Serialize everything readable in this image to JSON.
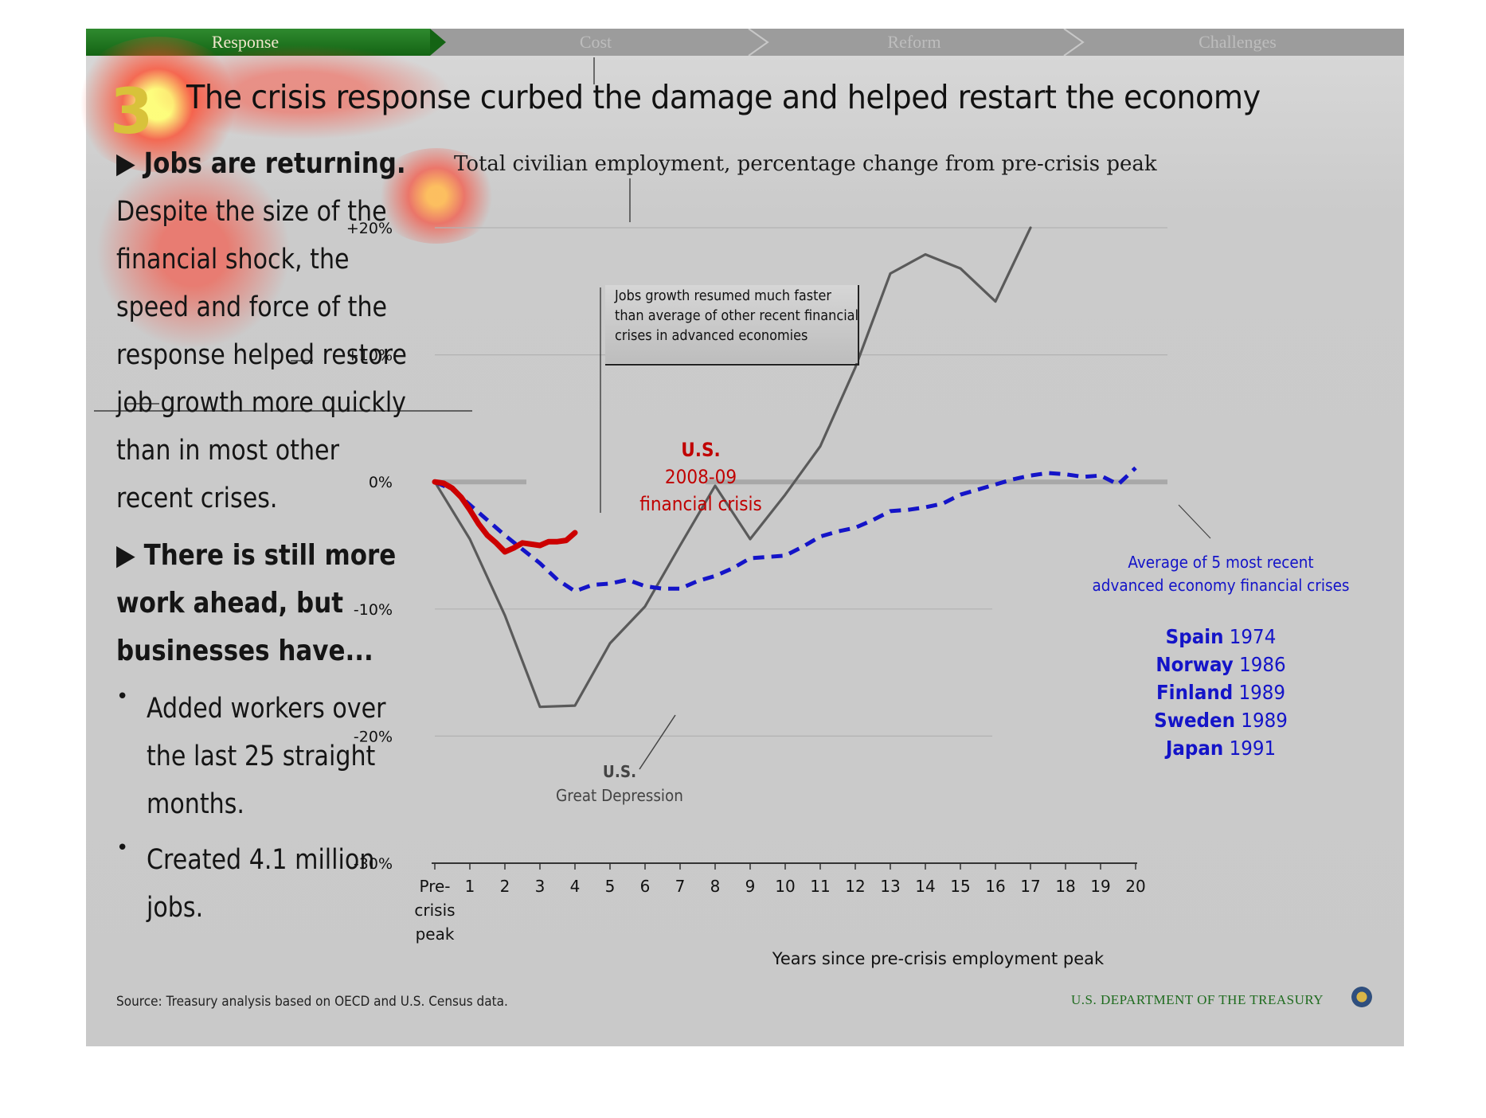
{
  "nav": {
    "tabs": [
      {
        "label": "Response",
        "active": true
      },
      {
        "label": "Cost",
        "active": false
      },
      {
        "label": "Reform",
        "active": false
      },
      {
        "label": "Challenges",
        "active": false
      }
    ]
  },
  "slide": {
    "number": "3",
    "title": "The crisis response curbed the damage and helped restart the economy"
  },
  "left": {
    "heading1": "▶ Jobs are returning.",
    "body_lines": [
      "Despite the size of the",
      "financial shock, the",
      "speed and force of the",
      "response helped restore",
      "job growth more quickly",
      "than in most other",
      "recent crises."
    ],
    "heading2_lines": [
      "▶ There is still more",
      "work ahead, but",
      "businesses have..."
    ],
    "bullets": [
      {
        "lines": [
          "Added workers over",
          "the last 25 straight",
          "months."
        ]
      },
      {
        "lines": [
          "Created 4.1 million",
          "jobs."
        ]
      }
    ]
  },
  "chart_data": {
    "type": "line",
    "title": "Total civilian employment, percentage change from pre-crisis peak",
    "xlabel": "Years since pre-crisis employment peak",
    "ylabel": "",
    "x_tick_labels": [
      "Pre-\ncrisis\npeak",
      "1",
      "2",
      "3",
      "4",
      "5",
      "6",
      "7",
      "8",
      "9",
      "10",
      "11",
      "12",
      "13",
      "14",
      "15",
      "16",
      "17",
      "18",
      "19",
      "20"
    ],
    "xlim": [
      0,
      20
    ],
    "ylim": [
      -30,
      20
    ],
    "y_ticks": [
      {
        "v": 20,
        "label": "+20%"
      },
      {
        "v": 10,
        "label": "+10%"
      },
      {
        "v": 0,
        "label": "0%"
      },
      {
        "v": -10,
        "label": "-10%"
      },
      {
        "v": -20,
        "label": "-20%"
      },
      {
        "v": -30,
        "label": "-30%"
      }
    ],
    "grid": true,
    "series": [
      {
        "name": "U.S. Great Depression",
        "color": "#5a5a5a",
        "style": "solid",
        "x": [
          0,
          1,
          2,
          3,
          4,
          5,
          6,
          7,
          8,
          9,
          10,
          11,
          12,
          13,
          14,
          15,
          16,
          17
        ],
        "y": [
          0,
          -4.5,
          -10.5,
          -17.7,
          -17.6,
          -12.7,
          -9.8,
          -5.0,
          -0.3,
          -4.5,
          -1.0,
          2.8,
          9.0,
          16.4,
          17.9,
          16.8,
          14.2,
          20.0
        ]
      },
      {
        "name": "Average of 5 most recent advanced economy financial crises",
        "color": "#1414c8",
        "style": "dashed",
        "x": [
          0,
          0.5,
          1,
          1.5,
          2,
          2.5,
          3,
          3.5,
          4,
          4.5,
          5,
          5.5,
          6,
          6.5,
          7,
          7.5,
          8,
          8.5,
          9,
          9.5,
          10,
          10.5,
          11,
          11.5,
          12,
          12.5,
          13,
          13.5,
          14,
          14.5,
          15,
          15.5,
          16,
          16.5,
          17,
          17.5,
          18,
          18.5,
          19,
          19.5,
          20
        ],
        "y": [
          0,
          -0.6,
          -1.8,
          -3.0,
          -4.2,
          -5.3,
          -6.4,
          -7.7,
          -8.6,
          -8.1,
          -8.0,
          -7.7,
          -8.2,
          -8.4,
          -8.4,
          -7.8,
          -7.4,
          -6.8,
          -6.0,
          -5.9,
          -5.8,
          -5.1,
          -4.3,
          -3.9,
          -3.6,
          -3.0,
          -2.3,
          -2.2,
          -2.0,
          -1.7,
          -1.0,
          -0.6,
          -0.2,
          0.2,
          0.5,
          0.7,
          0.6,
          0.4,
          0.5,
          -0.2,
          1.1
        ]
      },
      {
        "name": "U.S. 2008-09 financial crisis",
        "color": "#cc0000",
        "style": "solid",
        "x": [
          0,
          0.25,
          0.5,
          0.75,
          1.0,
          1.25,
          1.5,
          1.75,
          2.0,
          2.25,
          2.5,
          2.75,
          3.0,
          3.25,
          3.5,
          3.75,
          4.0
        ],
        "y": [
          0,
          -0.1,
          -0.5,
          -1.2,
          -2.2,
          -3.3,
          -4.2,
          -4.8,
          -5.5,
          -5.2,
          -4.8,
          -4.9,
          -5.0,
          -4.7,
          -4.7,
          -4.6,
          -4.0
        ]
      }
    ],
    "annotations": {
      "callout": [
        "Jobs growth resumed much faster",
        "than average of other recent financial",
        "crises in advanced economies"
      ],
      "us_label": "U.S.",
      "us_crisis": [
        "2008-09",
        "financial crisis"
      ],
      "depression_us": "U.S.",
      "depression_label": "Great Depression",
      "average_label": [
        "Average of 5 most recent",
        "advanced economy financial crises"
      ],
      "countries": [
        {
          "name": "Spain",
          "year": "1974"
        },
        {
          "name": "Norway",
          "year": "1986"
        },
        {
          "name": "Finland",
          "year": "1989"
        },
        {
          "name": "Sweden",
          "year": "1989"
        },
        {
          "name": "Japan",
          "year": "1991"
        }
      ]
    }
  },
  "footer": {
    "source": "Source: Treasury analysis based on OECD and U.S. Census data.",
    "agency": "U.S. DEPARTMENT OF THE TREASURY"
  },
  "colors": {
    "nav_active": "#1e7a1e",
    "us_2008": "#cc0000",
    "average": "#1414c8",
    "depression": "#5a5a5a",
    "treasury_text": "#1e6b1e"
  }
}
